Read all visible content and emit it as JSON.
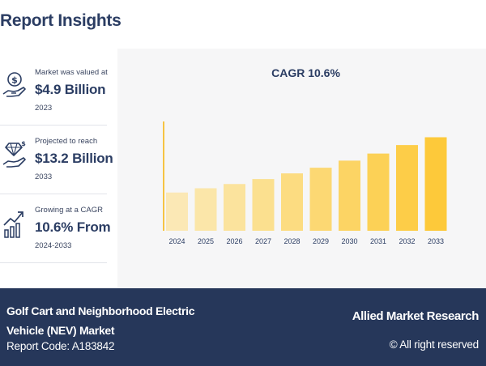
{
  "header": {
    "title": "Report Insights"
  },
  "stats": [
    {
      "caption": "Market was valued at",
      "value": "$4.9 Billion",
      "sub": "2023",
      "icon": "money-hand-icon"
    },
    {
      "caption": "Projected to reach",
      "value": "$13.2 Billion",
      "sub": "2033",
      "icon": "diamond-hand-icon"
    },
    {
      "caption": "Growing at a CAGR",
      "value": "10.6% From",
      "sub": "2024-2033",
      "icon": "growth-chart-icon"
    }
  ],
  "chart_data": {
    "type": "bar",
    "title": "CAGR 10.6%",
    "categories": [
      "2024",
      "2025",
      "2026",
      "2027",
      "2028",
      "2029",
      "2030",
      "2031",
      "2032",
      "2033"
    ],
    "values": [
      5.4,
      6.0,
      6.6,
      7.3,
      8.1,
      8.9,
      9.9,
      10.9,
      12.1,
      13.2
    ],
    "bar_colors": [
      "#fbe8b5",
      "#fbe6a9",
      "#fbe39d",
      "#fbe08f",
      "#fcdc81",
      "#fcd873",
      "#fcd464",
      "#fcd156",
      "#fdcd48",
      "#fdc93a"
    ],
    "axis_color": "#f6c443",
    "grid": false,
    "legend": "none"
  },
  "footer": {
    "market_name": "Golf Cart and Neighborhood Electric Vehicle (NEV) Market",
    "report_code": "Report Code: A183842",
    "brand": "Allied Market Research",
    "rights": "© All right reserved"
  }
}
